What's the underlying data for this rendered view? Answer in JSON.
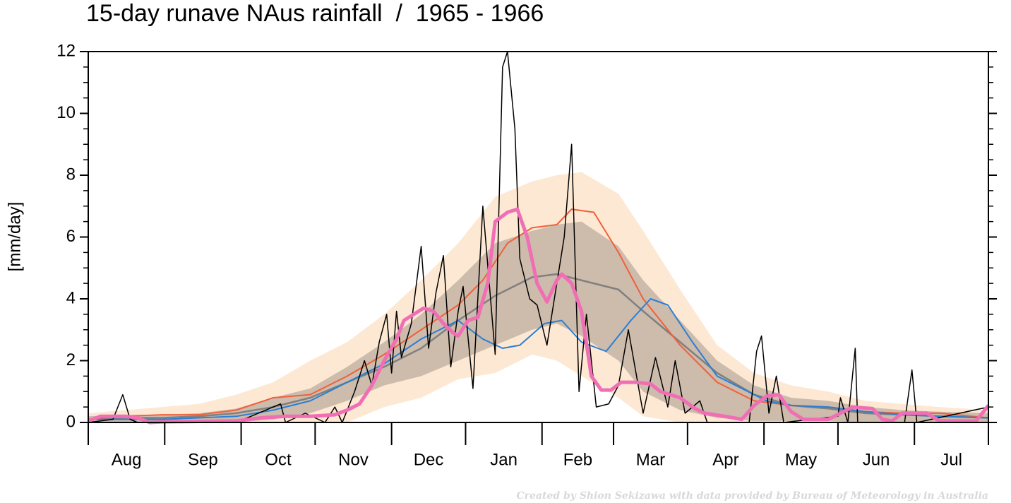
{
  "chart_data": {
    "type": "line",
    "title": "15-day runave NAus rainfall  /  1965 - 1966",
    "y_label": "[mm/day]",
    "footnote": "Created by Shion Sekizawa with data provided by Bureau of Meteorology in Australia",
    "categories": [
      "Aug",
      "Sep",
      "Oct",
      "Nov",
      "Dec",
      "Jan",
      "Feb",
      "Mar",
      "Apr",
      "May",
      "Jun",
      "Jul"
    ],
    "xlim": [
      0,
      365
    ],
    "xticks": [
      0,
      31,
      62,
      92,
      123,
      153,
      184,
      213,
      243,
      274,
      304,
      335,
      365
    ],
    "ylim": [
      0,
      12
    ],
    "yticks": [
      0,
      2,
      4,
      6,
      8,
      10,
      12
    ],
    "yticks_minor": [
      0.5,
      1,
      1.5,
      2.5,
      3,
      3.5,
      4.5,
      5,
      5.5,
      6.5,
      7,
      7.5,
      8.5,
      9,
      9.5,
      10.5,
      11,
      11.5
    ],
    "bands": [
      {
        "color": "#fde8d3",
        "x": [
          0,
          15,
          30,
          45,
          60,
          75,
          90,
          105,
          120,
          135,
          150,
          165,
          180,
          190,
          200,
          215,
          225,
          240,
          255,
          270,
          285,
          300,
          315,
          330,
          345,
          365
        ],
        "lower": [
          0,
          0,
          0,
          0,
          0,
          0,
          0,
          0,
          0.5,
          0.8,
          1.4,
          1.6,
          2.2,
          2.0,
          1.5,
          0.8,
          0.2,
          0,
          0,
          0,
          0,
          0,
          0,
          0,
          0,
          0
        ],
        "upper": [
          0.3,
          0.4,
          0.5,
          0.6,
          0.9,
          1.3,
          2.0,
          2.6,
          3.5,
          4.6,
          5.8,
          7.3,
          7.8,
          8.0,
          8.1,
          7.4,
          6.2,
          4.3,
          2.5,
          1.6,
          1.2,
          1.0,
          0.7,
          0.6,
          0.5,
          0.4
        ]
      },
      {
        "color": "#c4b3a3",
        "x": [
          0,
          15,
          30,
          45,
          60,
          75,
          90,
          105,
          120,
          135,
          150,
          165,
          180,
          190,
          200,
          215,
          225,
          240,
          255,
          270,
          285,
          300,
          315,
          330,
          345,
          365
        ],
        "lower": [
          0,
          0,
          0,
          0,
          0,
          0.1,
          0.3,
          0.7,
          1.2,
          1.5,
          2.0,
          2.5,
          3.0,
          3.2,
          2.8,
          2.0,
          1.0,
          0.4,
          0.15,
          0.05,
          0.05,
          0.05,
          0,
          0,
          0,
          0
        ],
        "upper": [
          0.2,
          0.25,
          0.25,
          0.3,
          0.45,
          0.8,
          1.1,
          1.8,
          2.6,
          3.5,
          4.6,
          5.8,
          6.2,
          6.4,
          6.5,
          5.7,
          4.6,
          3.3,
          2.0,
          1.2,
          0.8,
          0.7,
          0.5,
          0.4,
          0.35,
          0.3
        ]
      }
    ],
    "series": [
      {
        "color": "#808080",
        "width": 2.5,
        "x": [
          0,
          15,
          30,
          45,
          60,
          75,
          90,
          105,
          120,
          135,
          150,
          165,
          180,
          190,
          200,
          215,
          225,
          240,
          255,
          270,
          285,
          300,
          315,
          330,
          345,
          365
        ],
        "values": [
          0.1,
          0.15,
          0.15,
          0.2,
          0.3,
          0.5,
          0.8,
          1.3,
          1.8,
          2.4,
          3.3,
          4.1,
          4.7,
          4.8,
          4.6,
          4.3,
          3.6,
          2.6,
          1.6,
          0.9,
          0.55,
          0.45,
          0.3,
          0.25,
          0.2,
          0.15
        ]
      },
      {
        "color": "#f0603c",
        "width": 2,
        "x": [
          0,
          15,
          30,
          45,
          60,
          75,
          90,
          105,
          120,
          135,
          150,
          160,
          170,
          180,
          190,
          196,
          205,
          215,
          225,
          240,
          255,
          270,
          285,
          300,
          315,
          330,
          345,
          365
        ],
        "values": [
          0.1,
          0.2,
          0.25,
          0.25,
          0.4,
          0.8,
          0.9,
          1.5,
          2.2,
          3.0,
          3.8,
          4.6,
          5.8,
          6.3,
          6.4,
          6.9,
          6.8,
          5.5,
          4.0,
          2.5,
          1.3,
          0.7,
          0.55,
          0.5,
          0.35,
          0.3,
          0.3,
          0.15
        ]
      },
      {
        "color": "#2a7fd4",
        "width": 2,
        "x": [
          0,
          15,
          30,
          45,
          60,
          75,
          90,
          105,
          120,
          135,
          150,
          160,
          168,
          175,
          185,
          192,
          200,
          210,
          220,
          228,
          235,
          245,
          255,
          265,
          275,
          285,
          300,
          315,
          330,
          345,
          365
        ],
        "values": [
          0.1,
          0.1,
          0.1,
          0.15,
          0.2,
          0.4,
          0.7,
          1.3,
          1.9,
          2.7,
          3.3,
          2.7,
          2.4,
          2.5,
          3.2,
          3.3,
          2.6,
          2.3,
          3.3,
          4.0,
          3.8,
          2.6,
          1.5,
          1.1,
          0.7,
          0.55,
          0.5,
          0.35,
          0.25,
          0.2,
          0.15
        ]
      },
      {
        "color": "#000000",
        "width": 1.5,
        "x": [
          0,
          10,
          14,
          17,
          20,
          60,
          78,
          80,
          88,
          96,
          100,
          103,
          108,
          112,
          115,
          118,
          121,
          123,
          125,
          127,
          131,
          135,
          138,
          141,
          144,
          147,
          150,
          152,
          156,
          160,
          165,
          168,
          170,
          173,
          175,
          179,
          182,
          186,
          190,
          193,
          196,
          199,
          202,
          206,
          211,
          215,
          219,
          225,
          230,
          235,
          238,
          242,
          248,
          251,
          268,
          271,
          273,
          276,
          279,
          282,
          304,
          305,
          308,
          311,
          312,
          331,
          334,
          336,
          365
        ],
        "values": [
          0,
          0.1,
          0.9,
          0.1,
          0,
          0,
          0.6,
          0,
          0.3,
          0,
          0.5,
          0,
          1.0,
          2.0,
          1.2,
          2.6,
          3.5,
          1.6,
          3.6,
          2.1,
          3.2,
          5.7,
          2.4,
          4.2,
          5.4,
          1.8,
          3.6,
          4.4,
          1.1,
          7.0,
          2.2,
          11.5,
          12,
          9.5,
          5.3,
          4.0,
          3.8,
          2.5,
          4.5,
          6.0,
          9.0,
          1.0,
          3.5,
          0.5,
          0.6,
          1.2,
          3.0,
          0.3,
          2.1,
          0.5,
          2.0,
          0.3,
          0.7,
          0,
          0,
          2.3,
          2.8,
          0.3,
          1.5,
          0,
          0.2,
          0.8,
          0,
          2.4,
          0,
          0,
          1.7,
          0,
          0.5
        ]
      },
      {
        "color": "#f06eb4",
        "width": 5,
        "x": [
          0,
          5,
          10,
          15,
          20,
          25,
          30,
          60,
          70,
          80,
          90,
          100,
          105,
          110,
          115,
          120,
          125,
          128,
          132,
          136,
          140,
          144,
          148,
          150,
          154,
          158,
          162,
          165,
          170,
          174,
          178,
          182,
          186,
          190,
          192,
          196,
          200,
          204,
          208,
          212,
          216,
          222,
          228,
          232,
          240,
          246,
          250,
          258,
          265,
          270,
          275,
          280,
          285,
          290,
          300,
          305,
          310,
          318,
          322,
          326,
          330,
          340,
          345,
          360,
          365
        ],
        "values": [
          0.05,
          0.2,
          0.2,
          0.2,
          0.15,
          0,
          0.02,
          0.05,
          0.15,
          0.2,
          0.2,
          0.25,
          0.4,
          0.6,
          1.2,
          2.0,
          2.7,
          3.3,
          3.5,
          3.7,
          3.6,
          3.2,
          2.9,
          2.8,
          3.3,
          3.4,
          4.5,
          6.5,
          6.8,
          6.9,
          6.0,
          4.5,
          3.9,
          4.6,
          4.8,
          4.5,
          3.6,
          1.5,
          1.05,
          1.05,
          1.3,
          1.3,
          1.25,
          1.0,
          0.8,
          0.45,
          0.3,
          0.2,
          0.1,
          0.55,
          0.85,
          0.9,
          0.35,
          0.1,
          0.1,
          0.3,
          0.5,
          0.45,
          0.1,
          0.05,
          0.3,
          0.3,
          0.05,
          0.05,
          0.55
        ]
      }
    ]
  }
}
